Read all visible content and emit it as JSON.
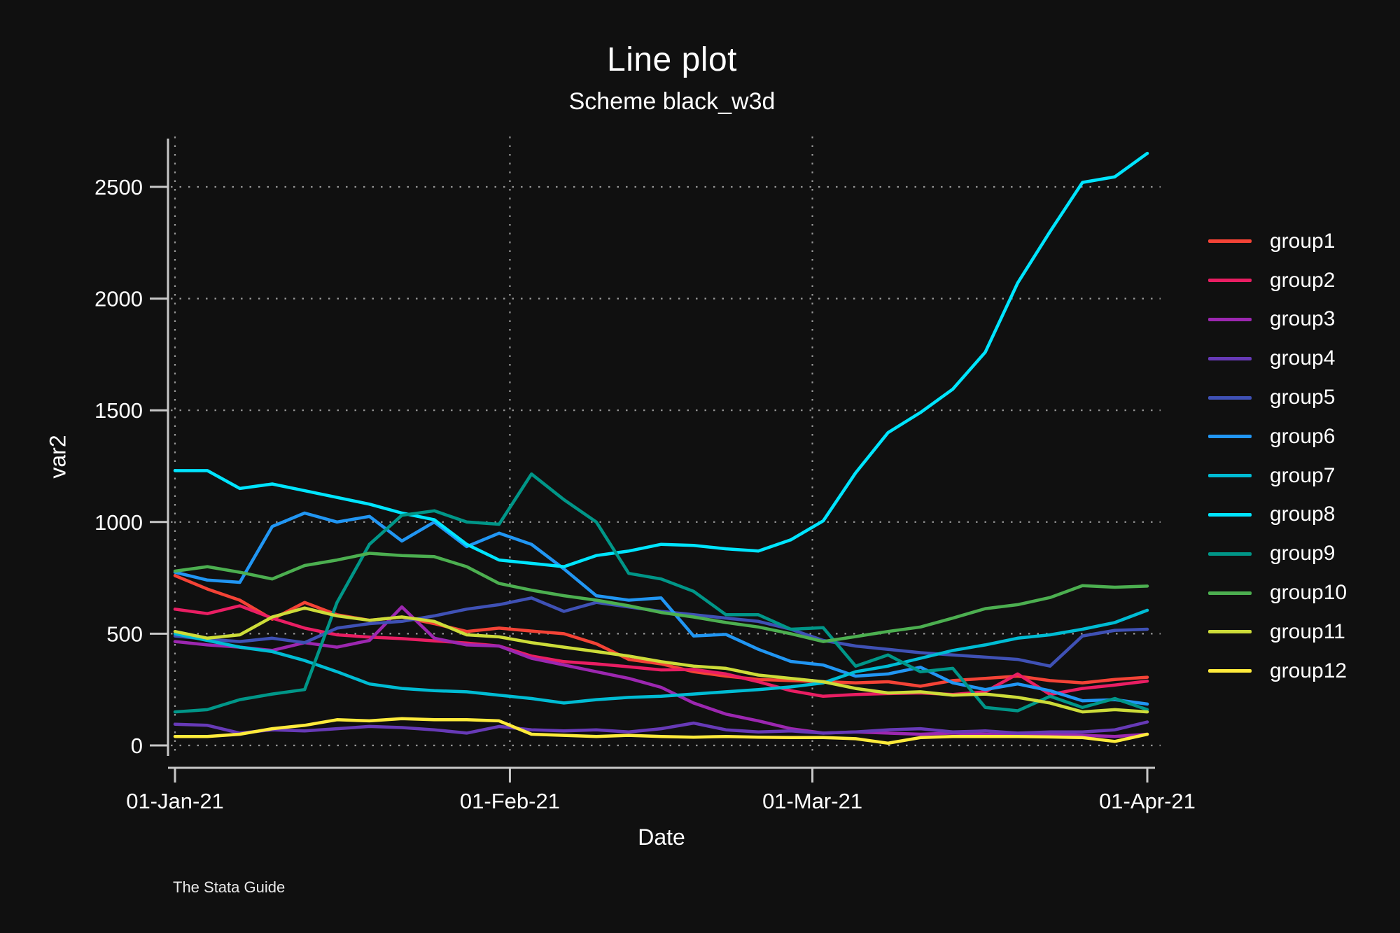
{
  "title": "Line plot",
  "subtitle": "Scheme black_w3d",
  "watermark": "The Stata Guide",
  "colors": {
    "background": "#101010",
    "text": "#ffffff",
    "axis": "#c8c8c8",
    "grid": "#969696"
  },
  "chart_data": {
    "type": "line",
    "title": "Line plot",
    "subtitle": "Scheme black_w3d",
    "xlabel": "Date",
    "ylabel": "var2",
    "legend_position": "right",
    "grid": "dotted",
    "ylim": [
      0,
      2725
    ],
    "y_ticks": [
      0,
      500,
      1000,
      1500,
      2000,
      2500
    ],
    "xlim_days": [
      0,
      90
    ],
    "x_tick_labels": [
      "01-Jan-21",
      "01-Feb-21",
      "01-Mar-21",
      "01-Apr-21"
    ],
    "x_tick_days": [
      0,
      31,
      59,
      90
    ],
    "gridline_days": [
      0,
      31,
      59
    ],
    "x_days": [
      0,
      3,
      6,
      9,
      12,
      15,
      18,
      21,
      24,
      27,
      30,
      33,
      36,
      39,
      42,
      45,
      48,
      51,
      54,
      57,
      60,
      63,
      66,
      69,
      72,
      75,
      78,
      81,
      84,
      87,
      90
    ],
    "series": [
      {
        "name": "group1",
        "color": "#f44336",
        "values": [
          760,
          700,
          650,
          565,
          640,
          585,
          560,
          575,
          545,
          510,
          525,
          512,
          500,
          455,
          385,
          365,
          330,
          310,
          295,
          290,
          285,
          280,
          285,
          265,
          290,
          300,
          310,
          290,
          280,
          295,
          305
        ]
      },
      {
        "name": "group2",
        "color": "#e91e63",
        "values": [
          610,
          590,
          625,
          570,
          525,
          495,
          485,
          478,
          468,
          458,
          445,
          400,
          375,
          365,
          352,
          338,
          340,
          320,
          285,
          245,
          220,
          228,
          232,
          235,
          228,
          240,
          320,
          228,
          255,
          270,
          288
        ]
      },
      {
        "name": "group3",
        "color": "#9c27b0",
        "values": [
          465,
          450,
          440,
          425,
          460,
          440,
          470,
          620,
          480,
          450,
          445,
          390,
          360,
          330,
          300,
          260,
          190,
          140,
          110,
          75,
          55,
          60,
          55,
          50,
          55,
          50,
          45,
          50,
          45,
          40,
          50
        ]
      },
      {
        "name": "group4",
        "color": "#673ab7",
        "values": [
          95,
          90,
          55,
          70,
          65,
          75,
          85,
          80,
          70,
          55,
          85,
          70,
          65,
          70,
          60,
          75,
          100,
          70,
          60,
          65,
          55,
          60,
          70,
          75,
          60,
          65,
          55,
          60,
          60,
          70,
          105
        ]
      },
      {
        "name": "group5",
        "color": "#3f51b5",
        "values": [
          490,
          475,
          465,
          480,
          460,
          525,
          545,
          555,
          580,
          610,
          630,
          660,
          600,
          640,
          620,
          600,
          585,
          570,
          555,
          520,
          470,
          445,
          430,
          415,
          405,
          395,
          385,
          355,
          490,
          515,
          520
        ]
      },
      {
        "name": "group6",
        "color": "#2196f3",
        "values": [
          775,
          740,
          730,
          980,
          1040,
          1000,
          1025,
          915,
          1000,
          890,
          950,
          900,
          790,
          670,
          650,
          660,
          490,
          497,
          430,
          376,
          360,
          310,
          320,
          350,
          280,
          250,
          275,
          245,
          200,
          205,
          185
        ]
      },
      {
        "name": "group7",
        "color": "#00bcd4",
        "values": [
          500,
          470,
          440,
          420,
          380,
          330,
          275,
          255,
          245,
          240,
          225,
          210,
          190,
          205,
          215,
          220,
          230,
          240,
          250,
          262,
          280,
          330,
          355,
          390,
          425,
          450,
          480,
          495,
          520,
          550,
          605
        ]
      },
      {
        "name": "group8",
        "color": "#00e5ff",
        "values": [
          1230,
          1230,
          1150,
          1170,
          1140,
          1110,
          1080,
          1040,
          1010,
          900,
          830,
          815,
          800,
          850,
          870,
          900,
          895,
          880,
          870,
          920,
          1005,
          1220,
          1400,
          1490,
          1595,
          1760,
          2070,
          2300,
          2520,
          2545,
          2650
        ]
      },
      {
        "name": "group9",
        "color": "#009688",
        "values": [
          150,
          160,
          205,
          230,
          250,
          640,
          900,
          1030,
          1050,
          1000,
          990,
          1215,
          1100,
          1000,
          770,
          745,
          690,
          585,
          585,
          520,
          527,
          355,
          405,
          330,
          345,
          170,
          155,
          220,
          170,
          210,
          160
        ]
      },
      {
        "name": "group10",
        "color": "#4caf50",
        "values": [
          780,
          800,
          775,
          745,
          805,
          830,
          860,
          850,
          845,
          800,
          725,
          695,
          670,
          650,
          625,
          595,
          575,
          550,
          530,
          500,
          465,
          487,
          510,
          530,
          570,
          612,
          630,
          662,
          715,
          708,
          713
        ]
      },
      {
        "name": "group11",
        "color": "#cddc39",
        "values": [
          510,
          480,
          495,
          575,
          615,
          580,
          560,
          575,
          555,
          495,
          486,
          460,
          440,
          420,
          400,
          375,
          355,
          345,
          315,
          300,
          285,
          255,
          235,
          240,
          225,
          230,
          215,
          190,
          150,
          160,
          150
        ]
      },
      {
        "name": "group12",
        "color": "#ffeb3b",
        "values": [
          40,
          40,
          50,
          75,
          90,
          115,
          110,
          120,
          115,
          115,
          110,
          50,
          45,
          40,
          45,
          40,
          37,
          40,
          37,
          35,
          35,
          30,
          10,
          35,
          40,
          40,
          40,
          38,
          35,
          18,
          50
        ]
      }
    ]
  }
}
